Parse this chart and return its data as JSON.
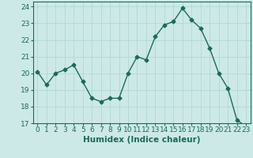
{
  "x": [
    0,
    1,
    2,
    3,
    4,
    5,
    6,
    7,
    8,
    9,
    10,
    11,
    12,
    13,
    14,
    15,
    16,
    17,
    18,
    19,
    20,
    21,
    22,
    23
  ],
  "y": [
    20.1,
    19.3,
    20.0,
    20.2,
    20.5,
    19.5,
    18.5,
    18.3,
    18.5,
    18.5,
    20.0,
    21.0,
    20.8,
    22.2,
    22.9,
    23.1,
    23.9,
    23.2,
    22.7,
    21.5,
    20.0,
    19.1,
    17.2,
    16.8
  ],
  "line_color": "#1a6b5a",
  "marker": "D",
  "marker_size": 2.5,
  "bg_color": "#cce9e7",
  "grid_color": "#aed4d1",
  "xlabel": "Humidex (Indice chaleur)",
  "ylim": [
    17,
    24.3
  ],
  "xlim": [
    -0.5,
    23.5
  ],
  "yticks": [
    17,
    18,
    19,
    20,
    21,
    22,
    23,
    24
  ],
  "xticks": [
    0,
    1,
    2,
    3,
    4,
    5,
    6,
    7,
    8,
    9,
    10,
    11,
    12,
    13,
    14,
    15,
    16,
    17,
    18,
    19,
    20,
    21,
    22,
    23
  ],
  "tick_color": "#1a6b5a",
  "label_fontsize": 6.5,
  "xlabel_fontsize": 7.5
}
